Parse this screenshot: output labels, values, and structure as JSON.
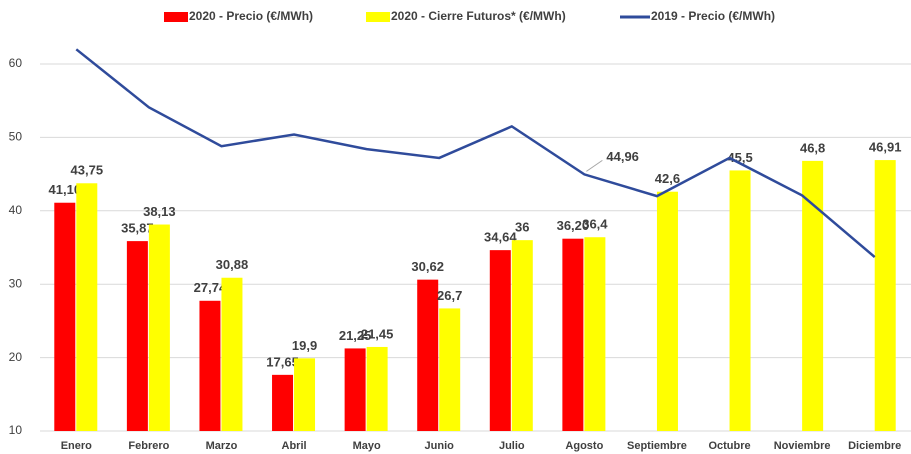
{
  "chart_data": {
    "type": "bar",
    "categories": [
      "Enero",
      "Febrero",
      "Marzo",
      "Abril",
      "Mayo",
      "Junio",
      "Julio",
      "Agosto",
      "Septiembre",
      "Octubre",
      "Noviembre",
      "Diciembre"
    ],
    "series": [
      {
        "name": "2020 - Precio (€/MWh)",
        "type": "bar",
        "color": "#ff0000",
        "values": [
          41.1,
          35.87,
          27.74,
          17.65,
          21.25,
          30.62,
          34.64,
          36.2,
          null,
          null,
          null,
          null
        ],
        "value_labels": [
          "41,10",
          "35,87",
          "27,74",
          "17,65",
          "21,25",
          "30,62",
          "34,64",
          "36,20",
          null,
          null,
          null,
          null
        ]
      },
      {
        "name": "2020 - Cierre Futuros*  (€/MWh)",
        "type": "bar",
        "color": "#ffff00",
        "values": [
          43.75,
          38.13,
          30.88,
          19.9,
          21.45,
          26.7,
          36,
          36.4,
          42.6,
          45.5,
          46.8,
          46.91
        ],
        "value_labels": [
          "43,75",
          "38,13",
          "30,88",
          "19,9",
          "21,45",
          "26,7",
          "36",
          "36,4",
          "42,6",
          "45,5",
          "46,8",
          "46,91"
        ]
      },
      {
        "name": "2019 - Precio (€/MWh)",
        "type": "line",
        "color": "#2f4b9b",
        "values": [
          62.0,
          54.1,
          48.8,
          50.4,
          48.4,
          47.2,
          51.5,
          44.96,
          42.0,
          47.2,
          42.1,
          33.7
        ],
        "value_labels": [
          null,
          null,
          null,
          null,
          null,
          null,
          null,
          "44,96",
          null,
          null,
          null,
          null
        ]
      }
    ],
    "ylim": [
      10,
      65
    ],
    "yticks": [
      10,
      20,
      30,
      40,
      50,
      60
    ],
    "grid": true,
    "legend": "top"
  }
}
